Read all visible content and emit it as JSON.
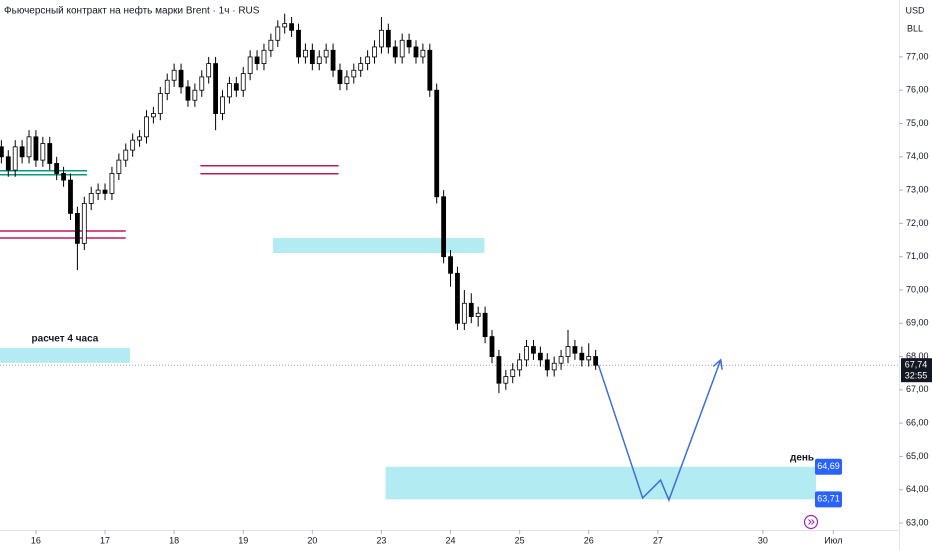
{
  "chart_data": {
    "type": "candlestick",
    "title": "Фьючерсный контракт на нефть марки Brent · 1ч · RUS",
    "currency": "USD",
    "unit": "BLL",
    "x": [
      -0.5,
      -0.4,
      -0.3,
      -0.2,
      -0.1,
      0,
      0.1,
      0.2,
      0.3,
      0.4,
      0.5,
      0.6,
      0.7,
      0.8,
      0.9,
      1,
      1.1,
      1.2,
      1.3,
      1.4,
      1.5,
      1.6,
      1.7,
      1.8,
      1.9,
      2,
      2.1,
      2.2,
      2.3,
      2.4,
      2.5,
      2.6,
      2.7,
      2.8,
      2.9,
      3,
      3.1,
      3.2,
      3.3,
      3.4,
      3.5,
      3.6,
      3.7,
      3.8,
      3.9,
      4,
      4.1,
      4.2,
      4.3,
      4.4,
      4.5,
      4.6,
      4.7,
      4.8,
      4.9,
      5,
      5.1,
      5.2,
      5.3,
      5.4,
      5.5,
      5.6,
      5.7,
      5.8,
      5.9,
      6,
      6.1,
      6.2,
      6.3,
      6.4,
      6.5,
      6.6,
      6.7,
      6.8,
      6.9,
      7,
      7.1,
      7.2,
      7.3,
      7.4,
      7.5,
      7.6,
      7.7,
      7.8,
      7.9,
      8,
      8.1
    ],
    "open": [
      74.3,
      74.0,
      73.6,
      74.3,
      74.0,
      74.6,
      73.9,
      74.4,
      73.8,
      73.5,
      73.3,
      72.3,
      71.4,
      72.6,
      72.9,
      73.0,
      72.9,
      73.5,
      73.9,
      74.2,
      74.5,
      74.6,
      75.2,
      75.3,
      75.9,
      76.3,
      76.6,
      76.1,
      75.7,
      76.0,
      76.4,
      76.8,
      75.3,
      75.8,
      76.2,
      76.0,
      76.5,
      77.0,
      76.8,
      77.2,
      77.5,
      77.9,
      78.0,
      77.8,
      77.0,
      77.2,
      76.8,
      77.0,
      77.2,
      76.6,
      76.2,
      76.4,
      76.6,
      76.8,
      77.0,
      77.3,
      77.8,
      77.3,
      77.0,
      77.5,
      77.3,
      77.0,
      77.2,
      76.0,
      72.8,
      71.0,
      70.5,
      69.0,
      69.6,
      69.2,
      69.3,
      68.6,
      68.0,
      67.2,
      67.4,
      67.6,
      67.9,
      68.3,
      68.1,
      67.9,
      67.6,
      67.8,
      68.0,
      68.3,
      68.1,
      67.9,
      68.0
    ],
    "high": [
      74.5,
      74.2,
      74.5,
      74.5,
      74.8,
      74.8,
      74.6,
      74.6,
      74.0,
      73.7,
      73.5,
      72.5,
      72.8,
      73.1,
      73.2,
      73.2,
      73.7,
      74.1,
      74.4,
      74.7,
      74.8,
      75.4,
      75.5,
      76.1,
      76.5,
      76.8,
      76.8,
      76.3,
      76.2,
      76.6,
      77.0,
      77.0,
      76.0,
      76.4,
      76.4,
      76.7,
      77.2,
      77.2,
      77.4,
      77.7,
      78.1,
      78.3,
      78.2,
      78.0,
      77.4,
      77.4,
      77.2,
      77.4,
      77.4,
      76.8,
      76.6,
      76.8,
      77.0,
      77.2,
      77.5,
      78.2,
      78.0,
      77.5,
      77.7,
      77.7,
      77.5,
      77.4,
      77.4,
      76.2,
      73.0,
      71.2,
      70.7,
      70.0,
      69.9,
      69.5,
      69.5,
      68.8,
      68.2,
      67.6,
      67.8,
      68.1,
      68.5,
      68.5,
      68.3,
      68.1,
      68.0,
      68.2,
      68.8,
      68.5,
      68.3,
      68.4,
      68.2
    ],
    "low": [
      73.8,
      73.4,
      73.4,
      73.8,
      73.8,
      73.7,
      73.7,
      73.6,
      73.3,
      73.1,
      72.1,
      70.6,
      71.2,
      72.4,
      72.7,
      72.7,
      72.7,
      73.3,
      73.7,
      74.0,
      74.3,
      74.4,
      75.0,
      75.1,
      75.7,
      76.1,
      75.9,
      75.5,
      75.5,
      75.8,
      76.2,
      74.8,
      75.1,
      75.6,
      75.8,
      75.8,
      76.3,
      76.6,
      76.6,
      77.0,
      77.3,
      77.7,
      77.6,
      76.8,
      76.8,
      76.6,
      76.6,
      76.8,
      76.4,
      76.0,
      76.0,
      76.2,
      76.4,
      76.6,
      76.8,
      77.1,
      77.1,
      76.8,
      76.8,
      77.1,
      76.8,
      76.8,
      75.8,
      72.6,
      70.8,
      70.1,
      68.8,
      68.8,
      69.0,
      68.9,
      68.4,
      67.8,
      66.9,
      67.0,
      67.2,
      67.4,
      67.7,
      67.9,
      67.7,
      67.4,
      67.4,
      67.6,
      67.8,
      67.9,
      67.7,
      67.7,
      67.6
    ],
    "close": [
      74.0,
      73.6,
      74.3,
      74.0,
      74.6,
      73.9,
      74.4,
      73.8,
      73.5,
      73.3,
      72.3,
      71.4,
      72.6,
      72.9,
      73.0,
      72.9,
      73.5,
      73.9,
      74.2,
      74.5,
      74.6,
      75.2,
      75.3,
      75.9,
      76.3,
      76.6,
      76.1,
      75.7,
      76.0,
      76.4,
      76.8,
      75.3,
      75.8,
      76.2,
      76.0,
      76.5,
      77.0,
      76.8,
      77.2,
      77.5,
      77.9,
      78.0,
      77.8,
      77.0,
      77.2,
      76.8,
      77.0,
      77.2,
      76.6,
      76.2,
      76.4,
      76.6,
      76.8,
      77.0,
      77.3,
      77.8,
      77.3,
      77.0,
      77.5,
      77.3,
      77.0,
      77.2,
      76.0,
      72.8,
      71.0,
      70.5,
      69.0,
      69.6,
      69.2,
      69.3,
      68.6,
      68.0,
      67.2,
      67.4,
      67.6,
      67.9,
      68.3,
      68.1,
      67.9,
      67.6,
      67.8,
      68.0,
      68.3,
      68.1,
      67.9,
      68.0,
      67.74
    ],
    "up_color": "#ffffff",
    "down_color": "#000000",
    "xlim": [
      -0.52,
      12.49
    ],
    "xticks": [
      {
        "value": 0,
        "label": "16"
      },
      {
        "value": 1,
        "label": "17"
      },
      {
        "value": 2,
        "label": "18"
      },
      {
        "value": 3,
        "label": "19"
      },
      {
        "value": 4,
        "label": "20"
      },
      {
        "value": 5,
        "label": "23"
      },
      {
        "value": 6,
        "label": "24"
      },
      {
        "value": 7,
        "label": "25"
      },
      {
        "value": 8,
        "label": "26"
      },
      {
        "value": 9,
        "label": "27"
      },
      {
        "value": 10.52,
        "label": "30"
      },
      {
        "value": 11.54,
        "label": "Июл"
      }
    ],
    "ylim": [
      62.79,
      78.71
    ],
    "yticks": [
      {
        "value": 63,
        "label": "63,00"
      },
      {
        "value": 64,
        "label": "64,00"
      },
      {
        "value": 65,
        "label": "65,00"
      },
      {
        "value": 66,
        "label": "66,00"
      },
      {
        "value": 67,
        "label": "67,00"
      },
      {
        "value": 68,
        "label": "68,00"
      },
      {
        "value": 69,
        "label": "69,00"
      },
      {
        "value": 70,
        "label": "70,00"
      },
      {
        "value": 71,
        "label": "71,00"
      },
      {
        "value": 72,
        "label": "72,00"
      },
      {
        "value": 73,
        "label": "73,00"
      },
      {
        "value": 74,
        "label": "74,00"
      },
      {
        "value": 75,
        "label": "75,00"
      },
      {
        "value": 76,
        "label": "76,00"
      },
      {
        "value": 77,
        "label": "77,00"
      }
    ],
    "last_price": {
      "value": 67.74,
      "label": "67,74",
      "countdown": "32:55"
    },
    "lines": [
      {
        "x": [
          -0.52,
          1.3
        ],
        "y": 71.77,
        "color": "#c2185b"
      },
      {
        "x": [
          -0.52,
          1.3
        ],
        "y": 71.56,
        "color": "#c2185b"
      },
      {
        "x": [
          -0.52,
          0.74
        ],
        "y": 73.58,
        "color": "#089981"
      },
      {
        "x": [
          -0.52,
          0.74
        ],
        "y": 73.46,
        "color": "#089981"
      },
      {
        "x": [
          2.38,
          4.38
        ],
        "y": 73.73,
        "color": "#c2185b"
      },
      {
        "x": [
          2.38,
          4.38
        ],
        "y": 73.49,
        "color": "#c2185b"
      }
    ],
    "zones": [
      {
        "x": [
          3.43,
          6.49
        ],
        "y": [
          71.11,
          71.56
        ],
        "color": "#b2ebf2"
      },
      {
        "x": [
          -0.52,
          1.36
        ],
        "y": [
          67.81,
          68.26
        ],
        "color": "#b2ebf2",
        "label": "расчет 4 часа"
      },
      {
        "x": [
          5.06,
          11.29
        ],
        "y": [
          63.71,
          64.69
        ],
        "color": "#b2ebf2",
        "label": "день"
      }
    ],
    "price_tags": [
      {
        "value": 64.69,
        "label": "64,69"
      },
      {
        "value": 63.71,
        "label": "63,71"
      }
    ],
    "projection": {
      "x": [
        8.14,
        8.78,
        9.04,
        9.16,
        9.91
      ],
      "y": [
        67.75,
        63.75,
        64.29,
        63.69,
        67.9
      ],
      "color": "#3d6fd6"
    }
  }
}
